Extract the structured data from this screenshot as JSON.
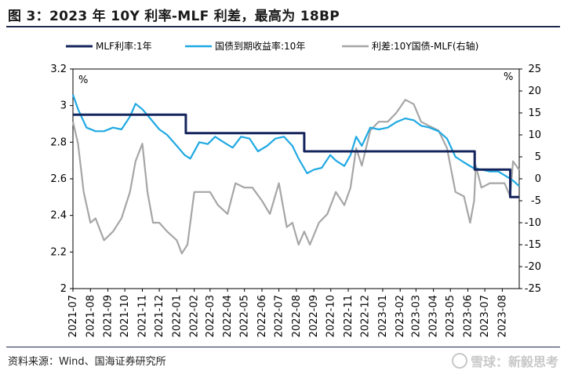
{
  "figure": {
    "title": "图 3：2023 年 10Y 利率-MLF 利差，最高为 18BP",
    "source": "资料来源：Wind、国海证券研究所",
    "watermark": "雪球：新毅思考"
  },
  "colors": {
    "mlf": "#14245c",
    "yield": "#1fa9e3",
    "spread": "#a6a6a6"
  },
  "chart_data": {
    "type": "line",
    "x_ticks": [
      "2021-07",
      "2021-08",
      "2021-09",
      "2021-10",
      "2021-11",
      "2021-12",
      "2022-01",
      "2022-02",
      "2022-03",
      "2022-04",
      "2022-05",
      "2022-06",
      "2022-07",
      "2022-08",
      "2022-09",
      "2022-10",
      "2022-11",
      "2022-12",
      "2023-01",
      "2023-02",
      "2023-03",
      "2023-04",
      "2023-05",
      "2023-06",
      "2023-07",
      "2023-08"
    ],
    "y_left": {
      "min": 2.0,
      "max": 3.2,
      "ticks": [
        "2",
        "2.2",
        "2.4",
        "2.6",
        "2.8",
        "3",
        "3.2"
      ],
      "unit": "%"
    },
    "y_right": {
      "min": -25,
      "max": 25,
      "ticks": [
        "-25",
        "-20",
        "-15",
        "-10",
        "-5",
        "0",
        "5",
        "10",
        "15",
        "20",
        "25"
      ],
      "unit": "%"
    },
    "series": [
      {
        "name": "MLF利率:1年",
        "axis": "left",
        "step": true,
        "x": [
          "2021-07-01",
          "2022-01-17",
          "2022-08-15",
          "2023-06-13",
          "2023-08-15",
          "2023-08-31"
        ],
        "y": [
          2.95,
          2.85,
          2.75,
          2.65,
          2.5,
          2.5
        ]
      },
      {
        "name": "国债到期收益率:10年",
        "axis": "left",
        "x": [
          "2021-07-01",
          "2021-07-10",
          "2021-07-25",
          "2021-08-10",
          "2021-08-25",
          "2021-09-10",
          "2021-09-25",
          "2021-10-10",
          "2021-10-20",
          "2021-11-01",
          "2021-11-15",
          "2021-12-01",
          "2021-12-15",
          "2022-01-01",
          "2022-01-15",
          "2022-01-25",
          "2022-02-10",
          "2022-02-25",
          "2022-03-10",
          "2022-03-25",
          "2022-04-10",
          "2022-04-25",
          "2022-05-10",
          "2022-05-25",
          "2022-06-10",
          "2022-06-25",
          "2022-07-10",
          "2022-07-25",
          "2022-08-05",
          "2022-08-20",
          "2022-09-01",
          "2022-09-15",
          "2022-09-30",
          "2022-10-10",
          "2022-10-25",
          "2022-11-05",
          "2022-11-15",
          "2022-11-25",
          "2022-12-10",
          "2022-12-25",
          "2023-01-10",
          "2023-01-25",
          "2023-02-10",
          "2023-02-25",
          "2023-03-10",
          "2023-03-25",
          "2023-04-10",
          "2023-04-25",
          "2023-05-10",
          "2023-05-25",
          "2023-06-10",
          "2023-06-25",
          "2023-07-10",
          "2023-07-25",
          "2023-08-10",
          "2023-08-20",
          "2023-08-31"
        ],
        "y": [
          3.06,
          2.98,
          2.88,
          2.86,
          2.86,
          2.88,
          2.87,
          2.94,
          3.01,
          2.98,
          2.93,
          2.87,
          2.84,
          2.78,
          2.73,
          2.71,
          2.8,
          2.79,
          2.83,
          2.8,
          2.77,
          2.83,
          2.82,
          2.75,
          2.78,
          2.82,
          2.83,
          2.78,
          2.71,
          2.63,
          2.65,
          2.66,
          2.73,
          2.7,
          2.67,
          2.73,
          2.83,
          2.78,
          2.88,
          2.87,
          2.88,
          2.91,
          2.93,
          2.92,
          2.89,
          2.88,
          2.86,
          2.82,
          2.72,
          2.69,
          2.66,
          2.65,
          2.64,
          2.64,
          2.61,
          2.59,
          2.56
        ]
      },
      {
        "name": "利差:10Y国债-MLF(右轴)",
        "axis": "right",
        "x": [
          "2021-07-01",
          "2021-07-10",
          "2021-07-20",
          "2021-08-01",
          "2021-08-10",
          "2021-08-25",
          "2021-09-10",
          "2021-09-25",
          "2021-10-10",
          "2021-10-20",
          "2021-11-01",
          "2021-11-10",
          "2021-11-20",
          "2021-12-01",
          "2021-12-15",
          "2022-01-01",
          "2022-01-10",
          "2022-01-20",
          "2022-02-01",
          "2022-02-15",
          "2022-03-01",
          "2022-03-15",
          "2022-04-01",
          "2022-04-15",
          "2022-05-01",
          "2022-05-15",
          "2022-06-01",
          "2022-06-15",
          "2022-07-01",
          "2022-07-15",
          "2022-07-25",
          "2022-08-05",
          "2022-08-15",
          "2022-08-25",
          "2022-09-10",
          "2022-09-25",
          "2022-10-10",
          "2022-10-25",
          "2022-11-05",
          "2022-11-15",
          "2022-11-25",
          "2022-12-10",
          "2022-12-25",
          "2023-01-10",
          "2023-01-25",
          "2023-02-10",
          "2023-02-25",
          "2023-03-10",
          "2023-03-25",
          "2023-04-10",
          "2023-04-25",
          "2023-05-10",
          "2023-05-25",
          "2023-06-05",
          "2023-06-12",
          "2023-06-15",
          "2023-06-25",
          "2023-07-10",
          "2023-07-25",
          "2023-08-05",
          "2023-08-15",
          "2023-08-20",
          "2023-08-31"
        ],
        "y": [
          13,
          8,
          -3,
          -10,
          -9,
          -14,
          -12,
          -9,
          -3,
          4,
          8,
          -3,
          -10,
          -10,
          -12,
          -14,
          -17,
          -15,
          -3,
          -3,
          -3,
          -6,
          -8,
          -1,
          -2,
          -2,
          -5,
          -8,
          -1,
          -11,
          -10,
          -15,
          -12,
          -15,
          -10,
          -8,
          -3,
          -6,
          -2,
          7,
          3,
          11,
          13,
          13,
          15,
          18,
          17,
          13,
          12,
          11,
          7,
          -3,
          -4,
          -10,
          -5,
          3,
          -2,
          -1,
          -1,
          -1,
          -4,
          4,
          2
        ]
      }
    ]
  }
}
